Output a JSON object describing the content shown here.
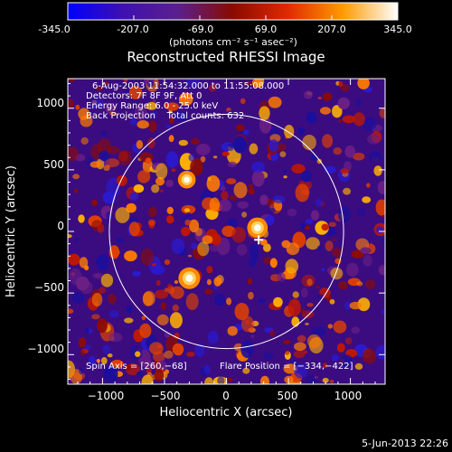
{
  "colorbar": {
    "tick_labels": [
      "-345.0",
      "-207.0",
      "-69.0",
      "69.0",
      "207.0",
      "345.0"
    ],
    "unit_label": "(photons cm⁻² s⁻¹ asec⁻²)",
    "range": [
      -345.0,
      345.0
    ],
    "colors": [
      "#0000ff",
      "#3e10b0",
      "#5a1f8f",
      "#8a0a00",
      "#e02a00",
      "#ff9a00",
      "#ffffff"
    ]
  },
  "footer_date": "5-Jun-2013 22:26",
  "chart_data": {
    "type": "heatmap",
    "title": "Reconstructed RHESSI Image",
    "xlabel": "Heliocentric X (arcsec)",
    "ylabel": "Heliocentric Y (arcsec)",
    "xlim": [
      -1280,
      1280
    ],
    "ylim": [
      -1240,
      1240
    ],
    "x_ticks": [
      -1000,
      -500,
      0,
      500,
      1000
    ],
    "y_ticks": [
      1000,
      500,
      0,
      -500,
      -1000
    ],
    "x_tick_labels": [
      "−1000",
      "−500",
      "0",
      "500",
      "1000"
    ],
    "y_tick_labels": [
      "1000",
      "500",
      "0",
      "−500",
      "−1000"
    ],
    "info_lines": [
      "6-Aug-2003 11:54:32.000 to 11:55:08.000",
      "Detectors: 7F 8F 9F, Att 0",
      "Energy Range: 6.0 - 25.0 keV",
      "Back Projection    Total counts: 632"
    ],
    "spin_axis_label": "Spin Axis = [260,−68]",
    "flare_position_label": "Flare Position = [−334,−422]",
    "solar_disk": {
      "center": [
        0,
        0
      ],
      "radius_arcsec": 945
    },
    "marker": {
      "x": 260,
      "y": -68
    },
    "bright_sources": [
      {
        "x": -300,
        "y": -380,
        "intensity": 345
      },
      {
        "x": 250,
        "y": 30,
        "intensity": 320
      },
      {
        "x": -320,
        "y": 420,
        "intensity": 260
      }
    ],
    "grid": false,
    "colorbar_location": "top"
  }
}
